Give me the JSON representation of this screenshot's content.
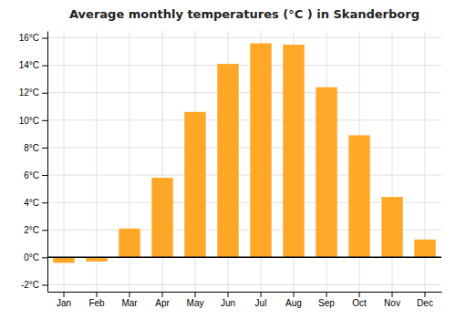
{
  "chart_data": {
    "type": "bar",
    "title": "Average monthly temperatures (°C ) in Skanderborg",
    "categories": [
      "Jan",
      "Feb",
      "Mar",
      "Apr",
      "May",
      "Jun",
      "Jul",
      "Aug",
      "Sep",
      "Oct",
      "Nov",
      "Dec"
    ],
    "values": [
      -0.4,
      -0.3,
      2.1,
      5.8,
      10.6,
      14.1,
      15.6,
      15.5,
      12.4,
      8.9,
      4.4,
      1.3
    ],
    "color": "#FFA726",
    "ylim": [
      -2.5,
      16.5
    ],
    "yticks": [
      {
        "value": -2,
        "label": "-2°C"
      },
      {
        "value": 0,
        "label": "0°C"
      },
      {
        "value": 2,
        "label": "2°C"
      },
      {
        "value": 4,
        "label": "4°C"
      },
      {
        "value": 6,
        "label": "6°C"
      },
      {
        "value": 8,
        "label": "8°C"
      },
      {
        "value": 10,
        "label": "10°C"
      },
      {
        "value": 12,
        "label": "12°C"
      },
      {
        "value": 14,
        "label": "14°C"
      },
      {
        "value": 16,
        "label": "16°C"
      }
    ],
    "grid": true
  }
}
